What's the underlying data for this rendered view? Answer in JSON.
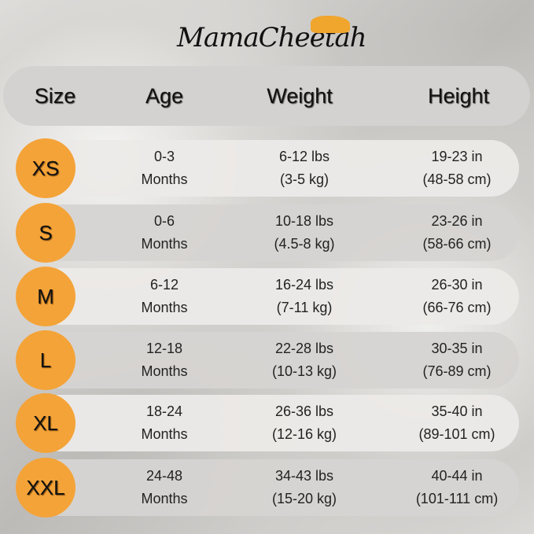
{
  "brand": {
    "name": "MamaCheetah",
    "accent": "#f4a338"
  },
  "header": {
    "size": "Size",
    "age": "Age",
    "weight": "Weight",
    "height": "Height"
  },
  "rows": [
    {
      "size": "XS",
      "age1": "0-3",
      "age2": "Months",
      "w1": "6-12 lbs",
      "w2": "(3-5 kg)",
      "h1": "19-23 in",
      "h2": "(48-58 cm)"
    },
    {
      "size": "S",
      "age1": "0-6",
      "age2": "Months",
      "w1": "10-18 lbs",
      "w2": "(4.5-8 kg)",
      "h1": "23-26 in",
      "h2": "(58-66 cm)"
    },
    {
      "size": "M",
      "age1": "6-12",
      "age2": "Months",
      "w1": "16-24 lbs",
      "w2": "(7-11 kg)",
      "h1": "26-30 in",
      "h2": "(66-76 cm)"
    },
    {
      "size": "L",
      "age1": "12-18",
      "age2": "Months",
      "w1": "22-28 lbs",
      "w2": "(10-13 kg)",
      "h1": "30-35 in",
      "h2": "(76-89 cm)"
    },
    {
      "size": "XL",
      "age1": "18-24",
      "age2": "Months",
      "w1": "26-36 lbs",
      "w2": "(12-16 kg)",
      "h1": "35-40 in",
      "h2": "(89-101 cm)"
    },
    {
      "size": "XXL",
      "age1": "24-48",
      "age2": "Months",
      "w1": "34-43 lbs",
      "w2": "(15-20 kg)",
      "h1": "40-44 in",
      "h2": "(101-111 cm)"
    }
  ]
}
